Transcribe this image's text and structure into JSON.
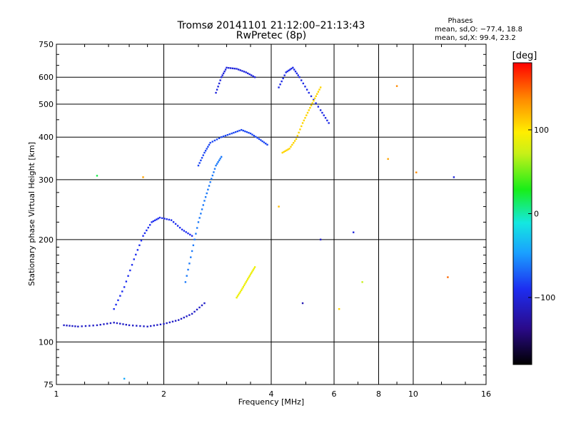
{
  "chart_data": {
    "type": "scatter",
    "title": "Tromsø 20141101 21:12:00–21:13:43",
    "subtitle": "RwPretec (8p)",
    "xlabel": "Frequency [MHz]",
    "ylabel": "Stationary phase Virtual Height [km]",
    "x_scale": "log",
    "y_scale": "log",
    "xlim": [
      1,
      16
    ],
    "ylim": [
      75,
      750
    ],
    "x_ticks": [
      1,
      2,
      4,
      6,
      8,
      10,
      16
    ],
    "x_tick_labels": [
      "1",
      "2",
      "4",
      "6",
      "8",
      "10",
      "16"
    ],
    "y_ticks": [
      75,
      100,
      200,
      300,
      400,
      500,
      600,
      750
    ],
    "y_tick_labels": [
      "75",
      "100",
      "200",
      "300",
      "400",
      "500",
      "600",
      "750"
    ],
    "grid": true,
    "phases_box": {
      "heading": "Phases",
      "line_o": "mean, sd,O:  −77.4, 18.8",
      "line_x": "mean, sd,X:   99.4, 23.2"
    },
    "colorbar": {
      "label": "[deg]",
      "range": [
        -180,
        180
      ],
      "ticks": [
        -100,
        0,
        100
      ],
      "tick_labels": [
        "−100",
        "0",
        "100"
      ]
    },
    "traces": [
      {
        "phase": -110,
        "points": [
          [
            1.05,
            112
          ],
          [
            1.15,
            111
          ],
          [
            1.3,
            112
          ],
          [
            1.45,
            114
          ],
          [
            1.6,
            112
          ],
          [
            1.8,
            111
          ],
          [
            2.0,
            113
          ],
          [
            2.2,
            116
          ],
          [
            2.4,
            121
          ],
          [
            2.6,
            130
          ]
        ]
      },
      {
        "phase": -90,
        "points": [
          [
            1.45,
            125
          ],
          [
            1.55,
            145
          ],
          [
            1.65,
            175
          ],
          [
            1.75,
            205
          ],
          [
            1.85,
            225
          ],
          [
            1.95,
            232
          ],
          [
            2.1,
            228
          ],
          [
            2.25,
            214
          ],
          [
            2.4,
            205
          ]
        ]
      },
      {
        "phase": -60,
        "points": [
          [
            2.3,
            150
          ],
          [
            2.4,
            185
          ],
          [
            2.5,
            225
          ],
          [
            2.6,
            260
          ],
          [
            2.7,
            295
          ],
          [
            2.8,
            330
          ],
          [
            2.9,
            350
          ]
        ]
      },
      {
        "phase": -80,
        "points": [
          [
            2.5,
            330
          ],
          [
            2.6,
            360
          ],
          [
            2.7,
            385
          ],
          [
            2.9,
            400
          ],
          [
            3.1,
            410
          ],
          [
            3.3,
            420
          ],
          [
            3.5,
            410
          ],
          [
            3.7,
            395
          ],
          [
            3.9,
            380
          ]
        ]
      },
      {
        "phase": -100,
        "points": [
          [
            2.8,
            540
          ],
          [
            2.9,
            600
          ],
          [
            3.0,
            640
          ],
          [
            3.2,
            635
          ],
          [
            3.4,
            620
          ],
          [
            3.6,
            600
          ]
        ]
      },
      {
        "phase": -95,
        "points": [
          [
            4.2,
            560
          ],
          [
            4.4,
            620
          ],
          [
            4.6,
            640
          ],
          [
            4.8,
            600
          ],
          [
            5.1,
            540
          ],
          [
            5.5,
            480
          ],
          [
            5.8,
            440
          ]
        ]
      },
      {
        "phase": 110,
        "points": [
          [
            4.3,
            360
          ],
          [
            4.5,
            370
          ],
          [
            4.7,
            395
          ],
          [
            4.9,
            440
          ],
          [
            5.1,
            480
          ],
          [
            5.3,
            520
          ],
          [
            5.5,
            560
          ]
        ]
      },
      {
        "phase": 90,
        "points": [
          [
            3.2,
            135
          ],
          [
            3.3,
            142
          ],
          [
            3.4,
            150
          ],
          [
            3.5,
            158
          ],
          [
            3.6,
            166
          ]
        ]
      }
    ],
    "scatter_points": [
      {
        "x": 1.55,
        "y": 78,
        "phase": -40
      },
      {
        "x": 1.75,
        "y": 305,
        "phase": 130
      },
      {
        "x": 1.3,
        "y": 308,
        "phase": 20
      },
      {
        "x": 6.2,
        "y": 125,
        "phase": 110
      },
      {
        "x": 6.8,
        "y": 210,
        "phase": -100
      },
      {
        "x": 7.2,
        "y": 150,
        "phase": 70
      },
      {
        "x": 8.5,
        "y": 345,
        "phase": 130
      },
      {
        "x": 9.0,
        "y": 565,
        "phase": 140
      },
      {
        "x": 10.2,
        "y": 315,
        "phase": 140
      },
      {
        "x": 12.5,
        "y": 155,
        "phase": 150
      },
      {
        "x": 13.0,
        "y": 305,
        "phase": -100
      },
      {
        "x": 4.9,
        "y": 130,
        "phase": -120
      },
      {
        "x": 4.2,
        "y": 250,
        "phase": 120
      },
      {
        "x": 5.5,
        "y": 200,
        "phase": -110
      }
    ]
  }
}
